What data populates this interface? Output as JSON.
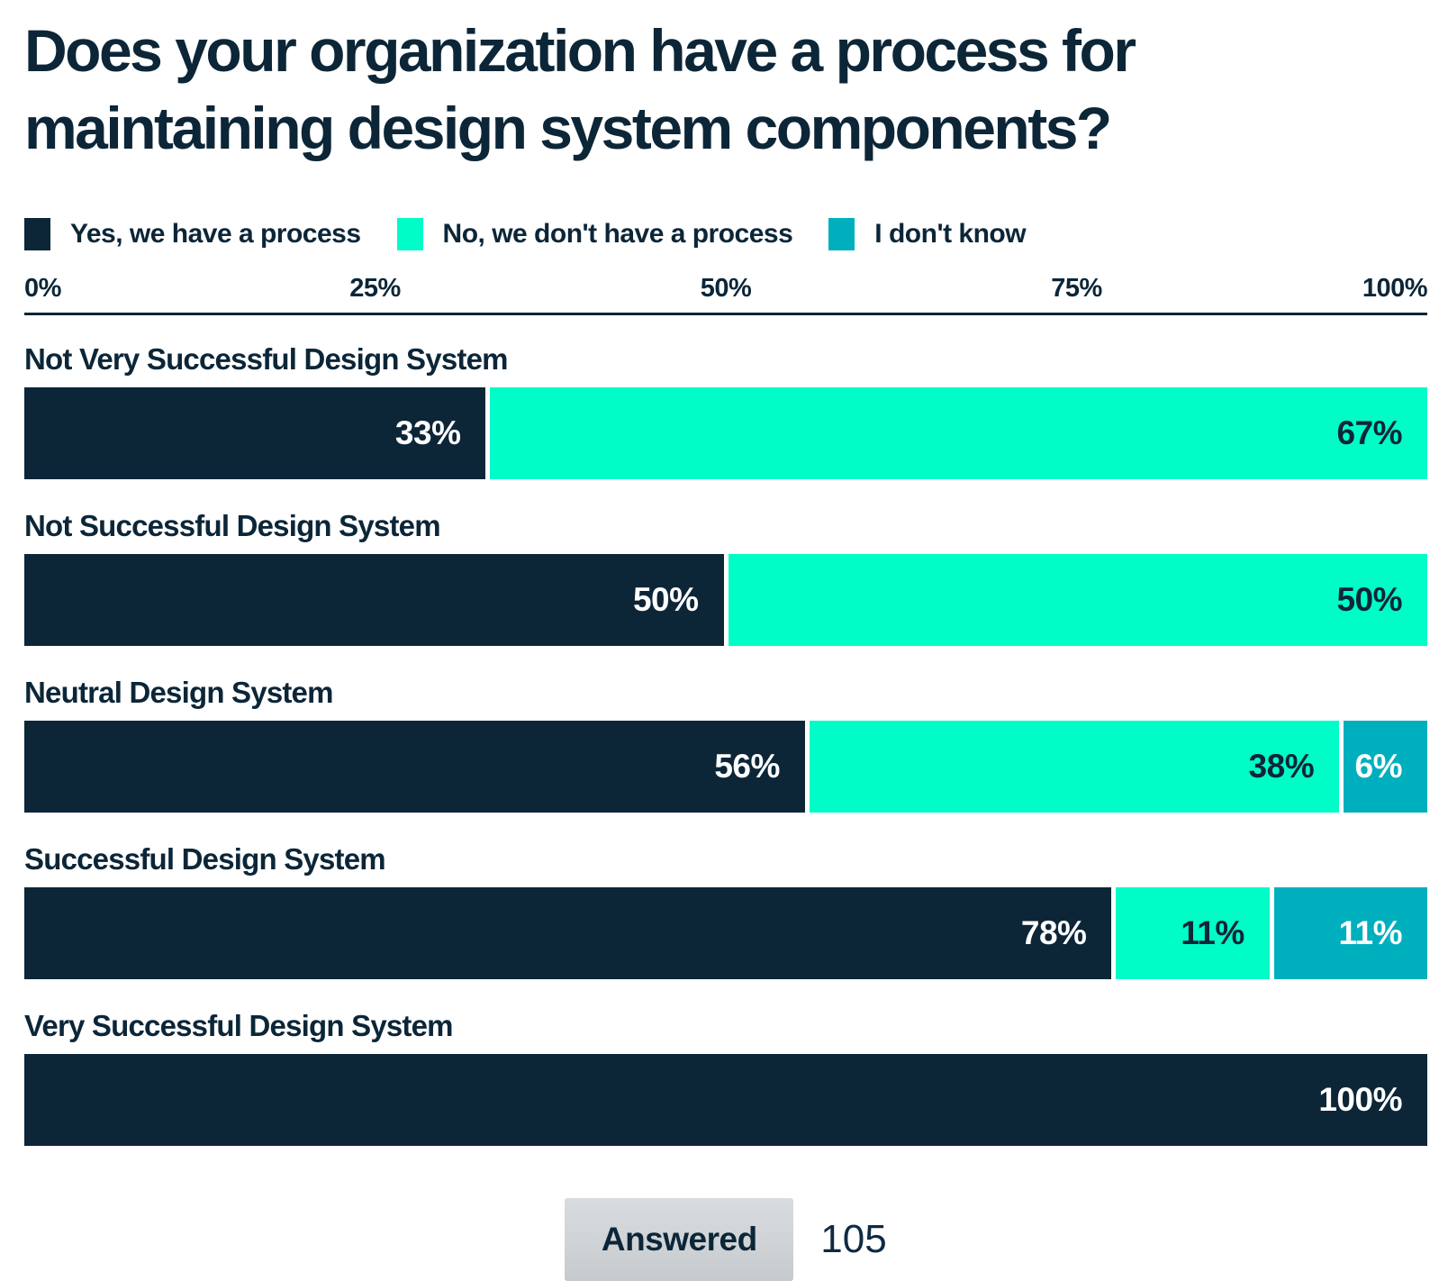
{
  "title_line1": "Does your organization have a process for",
  "title_line2": "maintaining design system components?",
  "colors": {
    "navy": "#0c2638",
    "mint": "#00fcc7",
    "teal": "#00afbe",
    "white": "#ffffff"
  },
  "legend": [
    {
      "label": "Yes, we have a process",
      "color": "#0c2638"
    },
    {
      "label": "No, we don't have a process",
      "color": "#00fcc7"
    },
    {
      "label": "I don't know",
      "color": "#00afbe"
    }
  ],
  "axis": {
    "ticks": [
      "0%",
      "25%",
      "50%",
      "75%",
      "100%"
    ]
  },
  "chart_data": {
    "type": "bar",
    "orientation": "horizontal",
    "stacked": true,
    "title": "Does your organization have a process for maintaining design system components?",
    "xlim": [
      0,
      100
    ],
    "x_ticks": [
      "0%",
      "25%",
      "50%",
      "75%",
      "100%"
    ],
    "categories": [
      "Not Very Successful Design System",
      "Not Successful Design System",
      "Neutral Design System",
      "Successful Design System",
      "Very Successful Design System"
    ],
    "series": [
      {
        "name": "Yes, we have a process",
        "color": "#0c2638",
        "label_color": "#ffffff",
        "values": [
          33,
          50,
          56,
          78,
          100
        ],
        "labels": [
          "33%",
          "50%",
          "56%",
          "78%",
          "100%"
        ]
      },
      {
        "name": "No, we don't have a process",
        "color": "#00fcc7",
        "label_color": "#0c2638",
        "values": [
          67,
          50,
          38,
          11,
          0
        ],
        "labels": [
          "67%",
          "50%",
          "38%",
          "11%",
          ""
        ]
      },
      {
        "name": "I don't know",
        "color": "#00afbe",
        "label_color": "#ffffff",
        "values": [
          0,
          0,
          6,
          11,
          0
        ],
        "labels": [
          "",
          "",
          "6%",
          "11%",
          ""
        ]
      }
    ],
    "legend_position": "top",
    "grid": false
  },
  "footer": {
    "answered_label": "Answered",
    "answered_value": "105"
  }
}
